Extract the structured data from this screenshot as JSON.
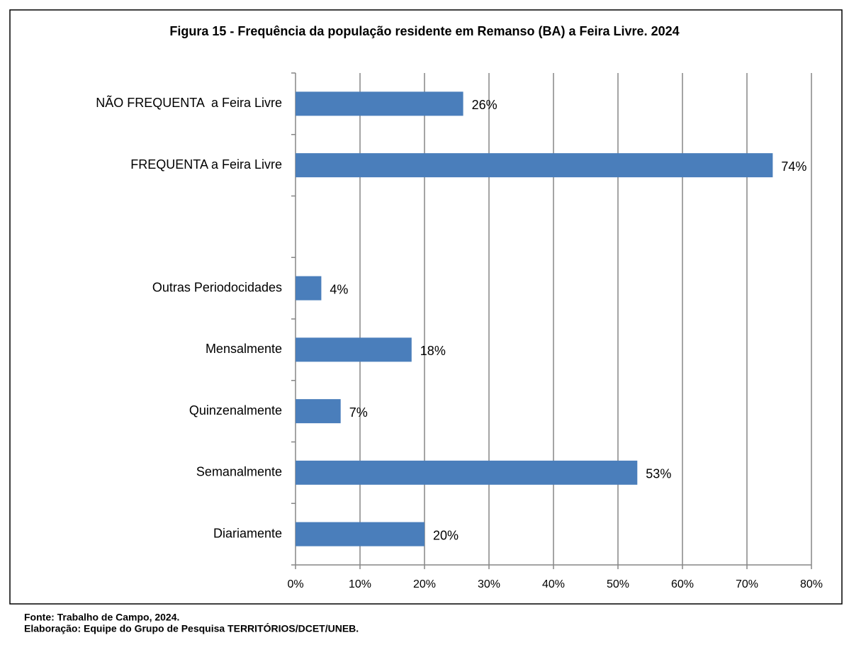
{
  "chart_data": {
    "type": "hbar",
    "title": "Figura 15 - Frequência da população residente em Remanso (BA) a Feira Livre. 2024",
    "categories": [
      "NÃO FREQUENTA  a Feira Livre",
      "FREQUENTA a Feira Livre",
      null,
      "Outras Periodocidades",
      "Mensalmente",
      "Quinzenalmente",
      "Semanalmente",
      "Diariamente"
    ],
    "values": [
      26,
      74,
      null,
      4,
      18,
      7,
      53,
      20
    ],
    "value_labels": [
      "26%",
      "74%",
      null,
      "4%",
      "18%",
      "7%",
      "53%",
      "20%"
    ],
    "color": "#4a7ebb",
    "xlim": [
      0,
      80
    ],
    "xticks": [
      {
        "value": 0,
        "label": "0%"
      },
      {
        "value": 10,
        "label": "10%"
      },
      {
        "value": 20,
        "label": "20%"
      },
      {
        "value": 30,
        "label": "30%"
      },
      {
        "value": 40,
        "label": "40%"
      },
      {
        "value": 50,
        "label": "50%"
      },
      {
        "value": 60,
        "label": "60%"
      },
      {
        "value": 70,
        "label": "70%"
      },
      {
        "value": 80,
        "label": "80%"
      }
    ],
    "grid": true,
    "notes": [
      "Fonte: Trabalho de  Campo, 2024.",
      "Elaboração: Equipe do Grupo de Pesquisa TERRITÓRIOS/DCET/UNEB."
    ]
  }
}
